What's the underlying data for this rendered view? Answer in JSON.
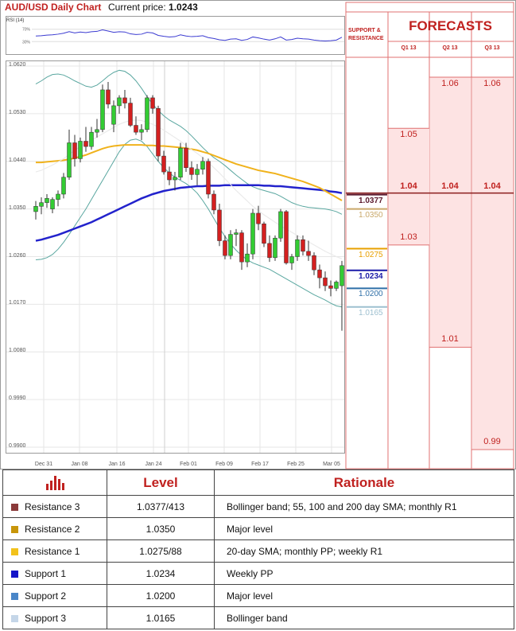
{
  "header": {
    "title": "AUD/USD Daily Chart",
    "price_label": "Current price:",
    "price_value": "1.0243"
  },
  "rsi": {
    "label": "RSI (14)",
    "ticks": [
      "70%",
      "30%"
    ]
  },
  "panel": {
    "sr_title": "SUPPORT & RESISTANCE",
    "forecast_title": "FORECASTS"
  },
  "chart_data": {
    "type": "candlestick",
    "title": "AUD/USD Daily Chart",
    "ylim": [
      0.99,
      1.062
    ],
    "y_ticks": [
      "1.0620",
      "1.0530",
      "1.0440",
      "1.0350",
      "1.0260",
      "1.0170",
      "1.0080",
      "0.9990",
      "0.9900"
    ],
    "x_ticks": [
      "Dec 31",
      "Jan 08",
      "Jan 16",
      "Jan 24",
      "Feb 01",
      "Feb 09",
      "Feb 17",
      "Feb 25",
      "Mar 05"
    ],
    "candles": [
      [
        1.0345,
        1.0365,
        1.033,
        1.0355
      ],
      [
        1.0355,
        1.0372,
        1.034,
        1.0362
      ],
      [
        1.0362,
        1.0378,
        1.0352,
        1.037
      ],
      [
        1.035,
        1.0372,
        1.0342,
        1.0368
      ],
      [
        1.0368,
        1.0385,
        1.0355,
        1.0378
      ],
      [
        1.0378,
        1.0418,
        1.037,
        1.041
      ],
      [
        1.041,
        1.05,
        1.0405,
        1.0475
      ],
      [
        1.0475,
        1.049,
        1.043,
        1.0445
      ],
      [
        1.0445,
        1.0485,
        1.0438,
        1.0478
      ],
      [
        1.0478,
        1.0505,
        1.0458,
        1.0468
      ],
      [
        1.0468,
        1.0505,
        1.0462,
        1.0495
      ],
      [
        1.0495,
        1.052,
        1.0485,
        1.05
      ],
      [
        1.05,
        1.0585,
        1.0495,
        1.0575
      ],
      [
        1.0575,
        1.059,
        1.054,
        1.0548
      ],
      [
        1.051,
        1.0555,
        1.0495,
        1.0545
      ],
      [
        1.0545,
        1.0565,
        1.053,
        1.056
      ],
      [
        1.056,
        1.0575,
        1.054,
        1.055
      ],
      [
        1.055,
        1.056,
        1.0505,
        1.0508
      ],
      [
        1.0508,
        1.0525,
        1.049,
        1.0495
      ],
      [
        1.0495,
        1.051,
        1.048,
        1.05
      ],
      [
        1.05,
        1.0565,
        1.0495,
        1.056
      ],
      [
        1.056,
        1.0565,
        1.053,
        1.054
      ],
      [
        1.054,
        1.0545,
        1.044,
        1.045
      ],
      [
        1.045,
        1.046,
        1.0415,
        1.042
      ],
      [
        1.042,
        1.043,
        1.0395,
        1.0405
      ],
      [
        1.0405,
        1.042,
        1.0385,
        1.041
      ],
      [
        1.041,
        1.0475,
        1.0405,
        1.0465
      ],
      [
        1.0465,
        1.0475,
        1.042,
        1.0428
      ],
      [
        1.0428,
        1.044,
        1.0405,
        1.0415
      ],
      [
        1.0415,
        1.0435,
        1.0395,
        1.0425
      ],
      [
        1.0425,
        1.0448,
        1.0415,
        1.044
      ],
      [
        1.044,
        1.0445,
        1.037,
        1.0378
      ],
      [
        1.0378,
        1.0385,
        1.034,
        1.0348
      ],
      [
        1.0348,
        1.036,
        1.028,
        1.029
      ],
      [
        1.029,
        1.03,
        1.0255,
        1.0262
      ],
      [
        1.0262,
        1.031,
        1.0255,
        1.0302
      ],
      [
        1.0302,
        1.0312,
        1.028,
        1.0305
      ],
      [
        1.0305,
        1.031,
        1.0235,
        1.025
      ],
      [
        1.025,
        1.0285,
        1.024,
        1.0265
      ],
      [
        1.0265,
        1.035,
        1.0255,
        1.0342
      ],
      [
        1.0342,
        1.0356,
        1.031,
        1.0322
      ],
      [
        1.0322,
        1.0326,
        1.0278,
        1.0285
      ],
      [
        1.0285,
        1.03,
        1.025,
        1.0258
      ],
      [
        1.0258,
        1.03,
        1.0252,
        1.0295
      ],
      [
        1.0295,
        1.035,
        1.0288,
        1.0345
      ],
      [
        1.0345,
        1.0348,
        1.0245,
        1.0248
      ],
      [
        1.0248,
        1.0265,
        1.0235,
        1.026
      ],
      [
        1.026,
        1.03,
        1.0252,
        1.0292
      ],
      [
        1.0292,
        1.03,
        1.0262,
        1.027
      ],
      [
        1.027,
        1.029,
        1.0252,
        1.0262
      ],
      [
        1.0262,
        1.0268,
        1.0225,
        1.0235
      ],
      [
        1.0235,
        1.0245,
        1.02,
        1.022
      ],
      [
        1.022,
        1.0232,
        1.0195,
        1.0205
      ],
      [
        1.0205,
        1.0215,
        1.0185,
        1.02
      ],
      [
        1.02,
        1.0215,
        1.0195,
        1.0212
      ],
      [
        1.0205,
        1.0252,
        1.012,
        1.0243
      ]
    ],
    "series": [
      {
        "values": [
          1.029,
          1.0292,
          1.0295,
          1.0298,
          1.0301,
          1.0305,
          1.0309,
          1.0313,
          1.0317,
          1.0321,
          1.0325,
          1.033,
          1.0335,
          1.034,
          1.0345,
          1.035,
          1.0355,
          1.036,
          1.0365,
          1.037,
          1.0374,
          1.0378,
          1.0381,
          1.0384,
          1.0386,
          1.0388,
          1.039,
          1.0391,
          1.0392,
          1.0393,
          1.0393,
          1.0394,
          1.0394,
          1.0394,
          1.0395,
          1.0395,
          1.0395,
          1.0395,
          1.0395,
          1.0395,
          1.0395,
          1.0394,
          1.0394,
          1.0393,
          1.0393,
          1.0392,
          1.0391,
          1.039,
          1.0389,
          1.0388,
          1.0387,
          1.0386,
          1.0385,
          1.0383,
          1.0382,
          1.038
        ]
      },
      {
        "values": [
          1.0438,
          1.0438,
          1.0439,
          1.044,
          1.0441,
          1.0442,
          1.0444,
          1.0446,
          1.0449,
          1.0452,
          1.0456,
          1.046,
          1.0464,
          1.0467,
          1.0469,
          1.047,
          1.0471,
          1.0471,
          1.0471,
          1.0471,
          1.047,
          1.047,
          1.0469,
          1.0469,
          1.0468,
          1.0467,
          1.0466,
          1.0465,
          1.0463,
          1.0461,
          1.0458,
          1.0455,
          1.0451,
          1.0447,
          1.0443,
          1.0439,
          1.0435,
          1.0432,
          1.0429,
          1.0426,
          1.0423,
          1.0421,
          1.0419,
          1.0417,
          1.0414,
          1.0411,
          1.0408,
          1.0405,
          1.0402,
          1.0398,
          1.0394,
          1.039,
          1.0384,
          1.0378,
          1.0372,
          1.0366
        ]
      },
      {
        "values": [
          1.042,
          1.0423,
          1.0428,
          1.0433,
          1.0439,
          1.0445,
          1.0453,
          1.0461,
          1.0468,
          1.0474,
          1.048,
          1.0486,
          1.0492,
          1.0498,
          1.0504,
          1.051,
          1.0514,
          1.0517,
          1.0518,
          1.0517,
          1.0514,
          1.051,
          1.0505,
          1.0499,
          1.0492,
          1.0485,
          1.0478,
          1.047,
          1.0462,
          1.0455,
          1.0447,
          1.0438,
          1.0428,
          1.0418,
          1.0407,
          1.0396,
          1.0385,
          1.0375,
          1.0365,
          1.0355,
          1.0347,
          1.0339,
          1.0332,
          1.0325,
          1.0318,
          1.0312,
          1.0306,
          1.03,
          1.0294,
          1.0288,
          1.0282,
          1.0276,
          1.027,
          1.0265,
          1.026,
          1.0256
        ]
      },
      {
        "values": [
          1.0586,
          1.0592,
          1.0599,
          1.0604,
          1.0605,
          1.0603,
          1.0598,
          1.0592,
          1.0587,
          1.0582,
          1.058,
          1.0584,
          1.0592,
          1.0601,
          1.0608,
          1.0612,
          1.061,
          1.0603,
          1.0592,
          1.0578,
          1.0562,
          1.0548,
          1.0536,
          1.0526,
          1.0518,
          1.0512,
          1.0506,
          1.0498,
          1.0488,
          1.0477,
          1.0466,
          1.0456,
          1.0447,
          1.044,
          1.0432,
          1.0423,
          1.0414,
          1.0406,
          1.0398,
          1.0392,
          1.0388,
          1.0385,
          1.0382,
          1.0379,
          1.0374,
          1.0368,
          1.0362,
          1.0358,
          1.0355,
          1.0353,
          1.0352,
          1.0351,
          1.035,
          1.0348,
          1.0345,
          1.034
        ]
      },
      {
        "values": [
          1.0254,
          1.0255,
          1.0258,
          1.0264,
          1.0274,
          1.0287,
          1.0302,
          1.0318,
          1.0334,
          1.035,
          1.0368,
          1.0386,
          1.0404,
          1.0422,
          1.044,
          1.0458,
          1.0472,
          1.048,
          1.0482,
          1.0478,
          1.0468,
          1.0454,
          1.044,
          1.0428,
          1.0418,
          1.041,
          1.0404,
          1.0398,
          1.039,
          1.038,
          1.0366,
          1.035,
          1.0332,
          1.0314,
          1.0298,
          1.0284,
          1.0272,
          1.0262,
          1.0254,
          1.0248,
          1.0244,
          1.024,
          1.0236,
          1.023,
          1.0224,
          1.0218,
          1.0212,
          1.0206,
          1.02,
          1.0194,
          1.0188,
          1.0183,
          1.0178,
          1.0172,
          1.0167,
          1.0165
        ]
      },
      {
        "values": [
          1.042,
          1.0423,
          1.0428,
          1.0433,
          1.0439,
          1.0445,
          1.0453,
          1.0461,
          1.0468,
          1.0474,
          1.048,
          1.0486,
          1.0492,
          1.0498,
          1.0504,
          1.051,
          1.0514,
          1.0517,
          1.0518,
          1.0517,
          1.0514,
          1.051,
          1.0505,
          1.0499,
          1.0492,
          1.0485,
          1.0478,
          1.047,
          1.0462,
          1.0455,
          1.0447,
          1.0438,
          1.0428,
          1.0418,
          1.0407,
          1.0396,
          1.0385,
          1.0375,
          1.0365,
          1.0355,
          1.0347,
          1.0339,
          1.0332,
          1.0325,
          1.0318,
          1.0312,
          1.0306,
          1.03,
          1.0294,
          1.0288,
          1.0282,
          1.0276,
          1.027,
          1.0265,
          1.026,
          1.0256
        ]
      }
    ],
    "rsi_values": [
      48,
      49,
      51,
      52,
      54,
      57,
      62,
      58,
      61,
      59,
      62,
      63,
      68,
      64,
      60,
      62,
      61,
      55,
      53,
      54,
      60,
      58,
      50,
      47,
      45,
      46,
      52,
      48,
      46,
      47,
      49,
      43,
      40,
      36,
      34,
      38,
      39,
      34,
      37,
      45,
      42,
      38,
      35,
      39,
      45,
      35,
      37,
      41,
      39,
      38,
      35,
      33,
      32,
      33,
      35,
      44
    ],
    "levels": [
      {
        "label": "1.0377",
        "value": 1.0377,
        "color": "#5b1a2e"
      },
      {
        "label": "1.0350",
        "value": 1.035,
        "color": "#c9a86a"
      },
      {
        "label": "1.0275",
        "value": 1.0275,
        "color": "#e8a000"
      },
      {
        "label": "1.0234",
        "value": 1.0234,
        "color": "#1a1aa8"
      },
      {
        "label": "1.0200",
        "value": 1.02,
        "color": "#2f6fa7"
      },
      {
        "label": "1.0165",
        "value": 1.0165,
        "color": "#9ec0d0"
      }
    ],
    "forecasts": {
      "quarters": [
        "Q1 13",
        "Q2 13",
        "Q3 13"
      ],
      "entries": [
        {
          "q": 0,
          "label": "1.05",
          "value": 1.05,
          "bold": false
        },
        {
          "q": 0,
          "label": "1.04",
          "value": 1.04,
          "bold": true
        },
        {
          "q": 0,
          "label": "1.03",
          "value": 1.03,
          "bold": false
        },
        {
          "q": 1,
          "label": "1.06",
          "value": 1.06,
          "bold": false
        },
        {
          "q": 1,
          "label": "1.04",
          "value": 1.04,
          "bold": true
        },
        {
          "q": 1,
          "label": "1.01",
          "value": 1.01,
          "bold": false
        },
        {
          "q": 2,
          "label": "1.06",
          "value": 1.06,
          "bold": false
        },
        {
          "q": 2,
          "label": "1.04",
          "value": 1.04,
          "bold": true
        },
        {
          "q": 2,
          "label": "0.99",
          "value": 0.99,
          "bold": false
        }
      ],
      "scale": {
        "value_a": 1.06,
        "value_b": 0.99
      }
    }
  },
  "table": {
    "headers": {
      "level": "Level",
      "rationale": "Rationale"
    },
    "rows": [
      {
        "name": "Resistance 3",
        "color": "#8b3a3a",
        "level": "1.0377/413",
        "rationale": "Bollinger band; 55, 100 and 200 day SMA; monthly R1"
      },
      {
        "name": "Resistance 2",
        "color": "#c8960a",
        "level": "1.0350",
        "rationale": "Major level"
      },
      {
        "name": "Resistance 1",
        "color": "#f2c21b",
        "level": "1.0275/88",
        "rationale": "20-day SMA; monthly PP; weekly R1"
      },
      {
        "name": "Support 1",
        "color": "#1515c8",
        "level": "1.0234",
        "rationale": "Weekly PP"
      },
      {
        "name": "Support 2",
        "color": "#4a86c8",
        "level": "1.0200",
        "rationale": "Major level"
      },
      {
        "name": "Support 3",
        "color": "#c5d6e8",
        "level": "1.0165",
        "rationale": "Bollinger band"
      }
    ]
  }
}
